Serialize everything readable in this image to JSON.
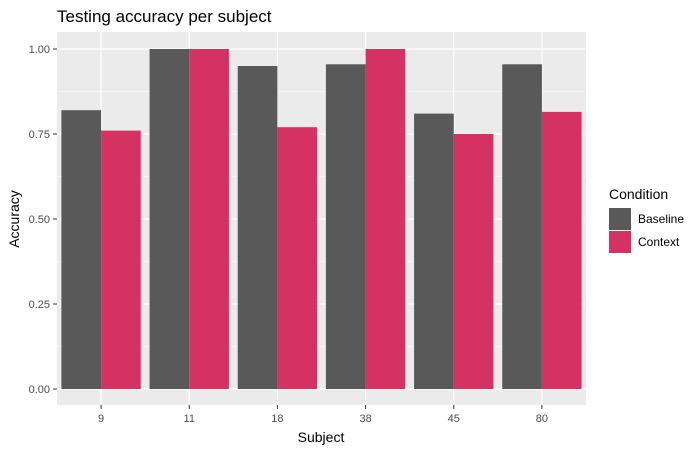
{
  "chart_data": {
    "type": "bar",
    "title": "Testing accuracy per subject",
    "xlabel": "Subject",
    "ylabel": "Accuracy",
    "categories": [
      "9",
      "11",
      "18",
      "38",
      "45",
      "80"
    ],
    "series": [
      {
        "name": "Baseline",
        "color": "#595959",
        "values": [
          0.82,
          1.0,
          0.95,
          0.955,
          0.81,
          0.955
        ]
      },
      {
        "name": "Context",
        "color": "#D63163",
        "values": [
          0.76,
          1.0,
          0.77,
          1.0,
          0.75,
          0.815
        ]
      }
    ],
    "ylim": [
      0,
      1.02
    ],
    "yticks": [
      0,
      0.25,
      0.5,
      0.75,
      1.0
    ],
    "ytick_labels": [
      "0.00",
      "0.25",
      "0.50",
      "0.75",
      "1.00"
    ],
    "grid": true,
    "legend": {
      "title": "Condition",
      "position": "right"
    },
    "panel_background": "#EBEBEB"
  }
}
